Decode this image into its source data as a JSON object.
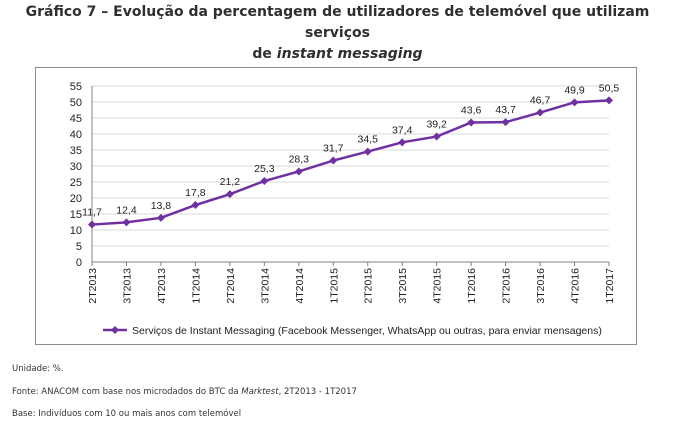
{
  "title": {
    "line1": "Gráfico 7 – Evolução da percentagem de utilizadores de telemóvel que utilizam serviços",
    "line2_prefix": "de ",
    "line2_italic": "instant messaging"
  },
  "notes": {
    "unit": "Unidade: %.",
    "source_prefix": "Fonte: ANACOM com base nos microdados do BTC da ",
    "source_italic": "Marktest",
    "source_suffix": ", 2T2013 - 1T2017",
    "base": "Base: Indivíduos com 10 ou mais anos com telemóvel"
  },
  "colors": {
    "series": "#7030a0",
    "grid": "#d9d9d9",
    "axis": "#808080"
  },
  "chart_data": {
    "type": "line",
    "categories": [
      "2T2013",
      "3T2013",
      "4T2013",
      "1T2014",
      "2T2014",
      "3T2014",
      "4T2014",
      "1T2015",
      "2T2015",
      "3T2015",
      "4T2015",
      "1T2016",
      "2T2016",
      "3T2016",
      "4T2016",
      "1T2017"
    ],
    "series": [
      {
        "name": "Serviços de Instant Messaging (Facebook Messenger, WhatsApp ou outras, para enviar mensagens)",
        "values": [
          11.7,
          12.4,
          13.8,
          17.8,
          21.2,
          25.3,
          28.3,
          31.7,
          34.5,
          37.4,
          39.2,
          43.6,
          43.7,
          46.7,
          49.9,
          50.5
        ],
        "labels": [
          "11,7",
          "12,4",
          "13,8",
          "17,8",
          "21,2",
          "25,3",
          "28,3",
          "31,7",
          "34,5",
          "37,4",
          "39,2",
          "43,6",
          "43,7",
          "46,7",
          "49,9",
          "50,5"
        ]
      }
    ],
    "ylim": [
      0,
      55
    ],
    "yticks": [
      0,
      5,
      10,
      15,
      20,
      25,
      30,
      35,
      40,
      45,
      50,
      55
    ],
    "grid": true,
    "legend": "bottom"
  }
}
